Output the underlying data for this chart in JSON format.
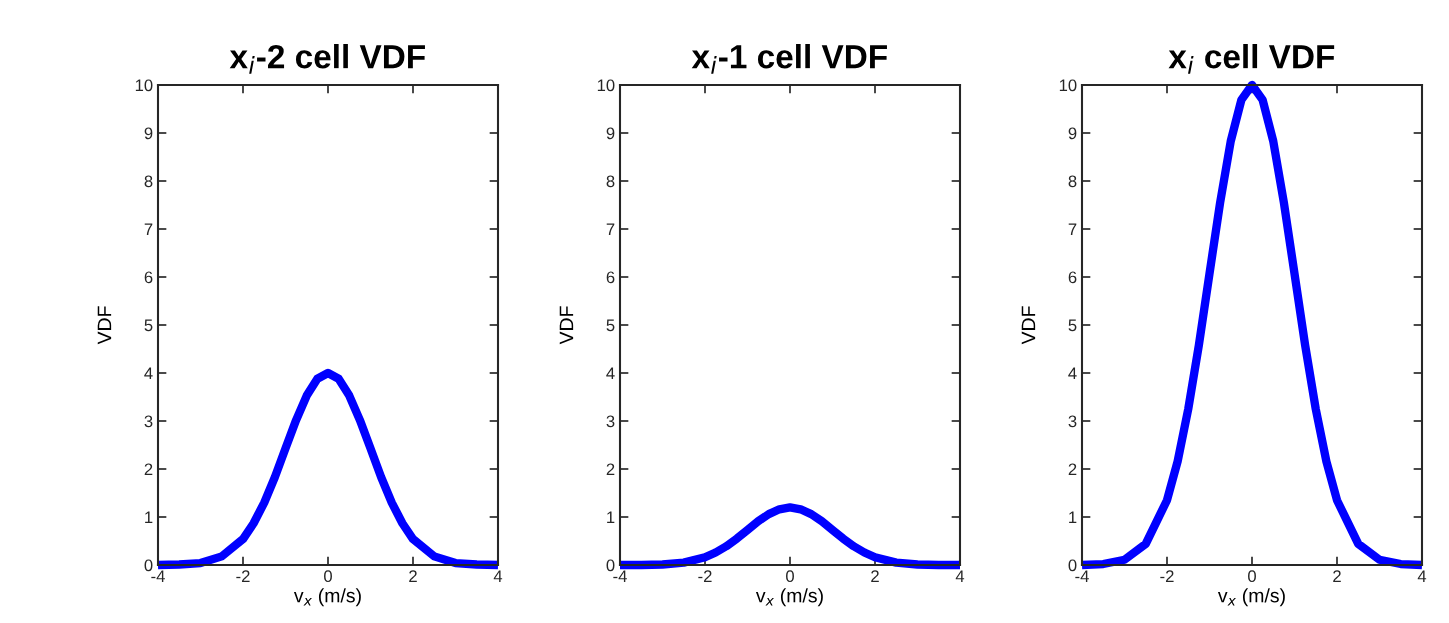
{
  "chart_data": [
    {
      "type": "line",
      "title": "x$_{i}$-2 cell VDF",
      "xlabel": "v$_{x}$ (m/s)",
      "ylabel": "VDF",
      "x": [
        -4,
        -3.5,
        -3,
        -2.5,
        -2,
        -1.75,
        -1.5,
        -1.25,
        -1,
        -0.75,
        -0.5,
        -0.25,
        0,
        0.25,
        0.5,
        0.75,
        1,
        1.25,
        1.5,
        1.75,
        2,
        2.5,
        3,
        3.5,
        4
      ],
      "series": [
        {
          "color": "#0000ff",
          "values": [
            0,
            0.01,
            0.04,
            0.18,
            0.54,
            0.87,
            1.3,
            1.83,
            2.43,
            3.02,
            3.53,
            3.88,
            4,
            3.88,
            3.53,
            3.02,
            2.43,
            1.83,
            1.3,
            0.87,
            0.54,
            0.18,
            0.04,
            0.01,
            0
          ]
        }
      ],
      "xlim": [
        -4,
        4
      ],
      "ylim": [
        0,
        10
      ],
      "xticks": [
        -4,
        -2,
        0,
        2,
        4
      ],
      "yticks": [
        0,
        1,
        2,
        3,
        4,
        5,
        6,
        7,
        8,
        9,
        10
      ],
      "line_style": "solid"
    },
    {
      "type": "line",
      "title": "x$_{i}$-1 cell VDF",
      "xlabel": "v$_{x}$ (m/s)",
      "ylabel": "VDF",
      "x": [
        -4,
        -3.5,
        -3,
        -2.5,
        -2,
        -1.75,
        -1.5,
        -1.25,
        -1,
        -0.75,
        -0.5,
        -0.25,
        0,
        0.25,
        0.5,
        0.75,
        1,
        1.25,
        1.5,
        1.75,
        2,
        2.5,
        3,
        3.5,
        4
      ],
      "series": [
        {
          "color": "#0000ff",
          "values": [
            0,
            0,
            0.01,
            0.05,
            0.16,
            0.26,
            0.39,
            0.55,
            0.73,
            0.91,
            1.06,
            1.16,
            1.2,
            1.16,
            1.06,
            0.91,
            0.73,
            0.55,
            0.39,
            0.26,
            0.16,
            0.05,
            0.01,
            0,
            0
          ]
        }
      ],
      "xlim": [
        -4,
        4
      ],
      "ylim": [
        0,
        10
      ],
      "xticks": [
        -4,
        -2,
        0,
        2,
        4
      ],
      "yticks": [
        0,
        1,
        2,
        3,
        4,
        5,
        6,
        7,
        8,
        9,
        10
      ],
      "line_style": "solid"
    },
    {
      "type": "line",
      "title": "x$_{i}$ cell VDF",
      "xlabel": "v$_{x}$ (m/s)",
      "ylabel": "VDF",
      "x": [
        -4,
        -3.5,
        -3,
        -2.5,
        -2,
        -1.75,
        -1.5,
        -1.25,
        -1,
        -0.75,
        -0.5,
        -0.25,
        0,
        0.25,
        0.5,
        0.75,
        1,
        1.25,
        1.5,
        1.75,
        2,
        2.5,
        3,
        3.5,
        4
      ],
      "series": [
        {
          "color": "#0000ff",
          "values": [
            0,
            0.02,
            0.11,
            0.44,
            1.35,
            2.16,
            3.25,
            4.58,
            6.07,
            7.55,
            8.83,
            9.69,
            10,
            9.69,
            8.83,
            7.55,
            6.07,
            4.58,
            3.25,
            2.16,
            1.35,
            0.44,
            0.11,
            0.02,
            0
          ]
        }
      ],
      "xlim": [
        -4,
        4
      ],
      "ylim": [
        0,
        10
      ],
      "xticks": [
        -4,
        -2,
        0,
        2,
        4
      ],
      "yticks": [
        0,
        1,
        2,
        3,
        4,
        5,
        6,
        7,
        8,
        9,
        10
      ],
      "line_style": "solid"
    }
  ]
}
